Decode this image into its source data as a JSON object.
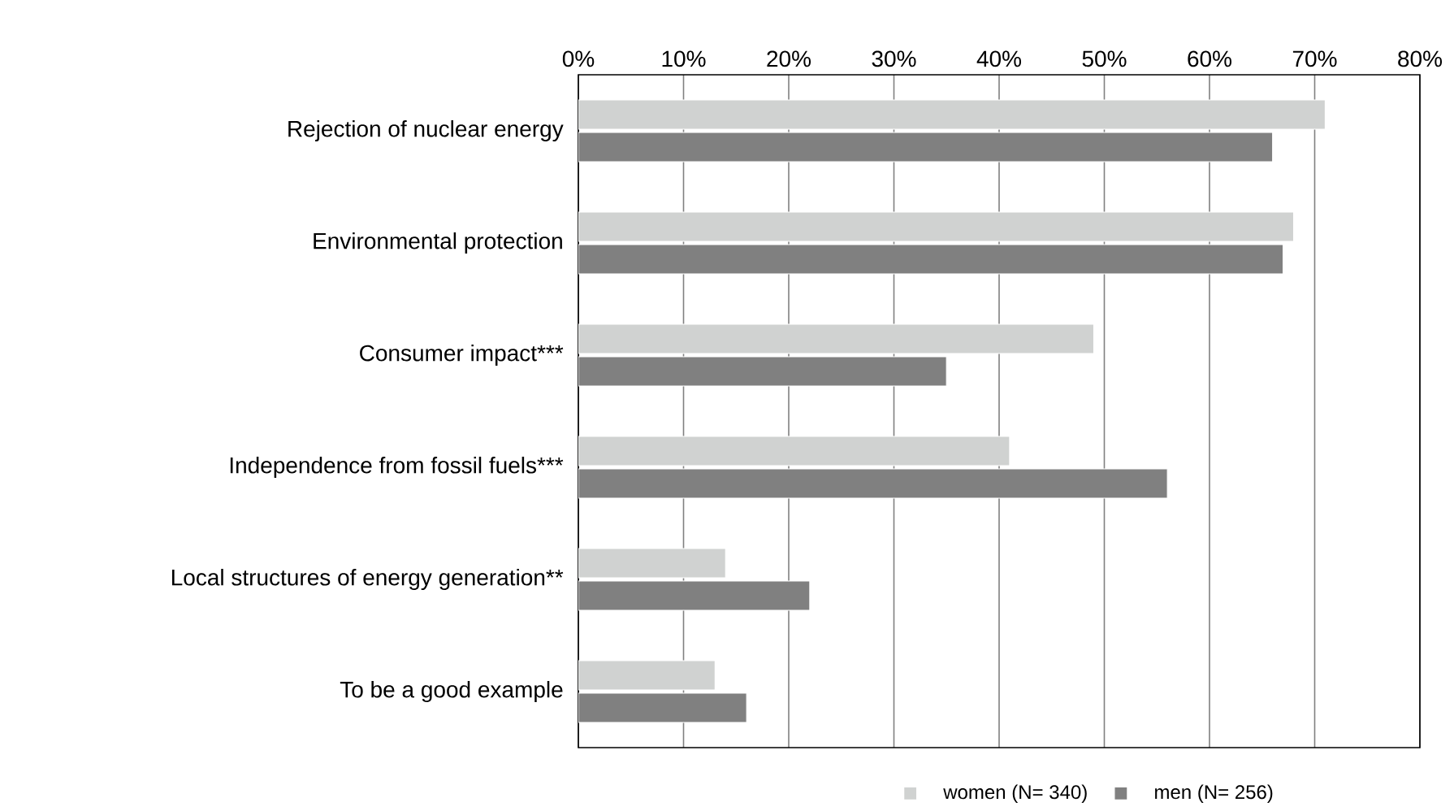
{
  "chart_data": {
    "type": "bar",
    "orientation": "horizontal",
    "categories": [
      "Rejection of nuclear energy",
      "Environmental protection",
      "Consumer impact***",
      "Independence from fossil fuels***",
      "Local structures of energy generation**",
      "To be a good example"
    ],
    "series": [
      {
        "name": "women (N= 340)",
        "color": "#d0d2d1",
        "values": [
          71,
          68,
          49,
          41,
          14,
          13
        ]
      },
      {
        "name": "men (N= 256)",
        "color": "#808080",
        "values": [
          66,
          67,
          35,
          56,
          22,
          16
        ]
      }
    ],
    "xlim": [
      0,
      80
    ],
    "xticks": [
      {
        "value": 0,
        "label": "0%"
      },
      {
        "value": 10,
        "label": "10%"
      },
      {
        "value": 20,
        "label": "20%"
      },
      {
        "value": 30,
        "label": "30%"
      },
      {
        "value": 40,
        "label": "40%"
      },
      {
        "value": 50,
        "label": "50%"
      },
      {
        "value": 60,
        "label": "60%"
      },
      {
        "value": 70,
        "label": "70%"
      },
      {
        "value": 80,
        "label": "80%"
      }
    ],
    "grid": "x",
    "legend": "bottom right"
  }
}
